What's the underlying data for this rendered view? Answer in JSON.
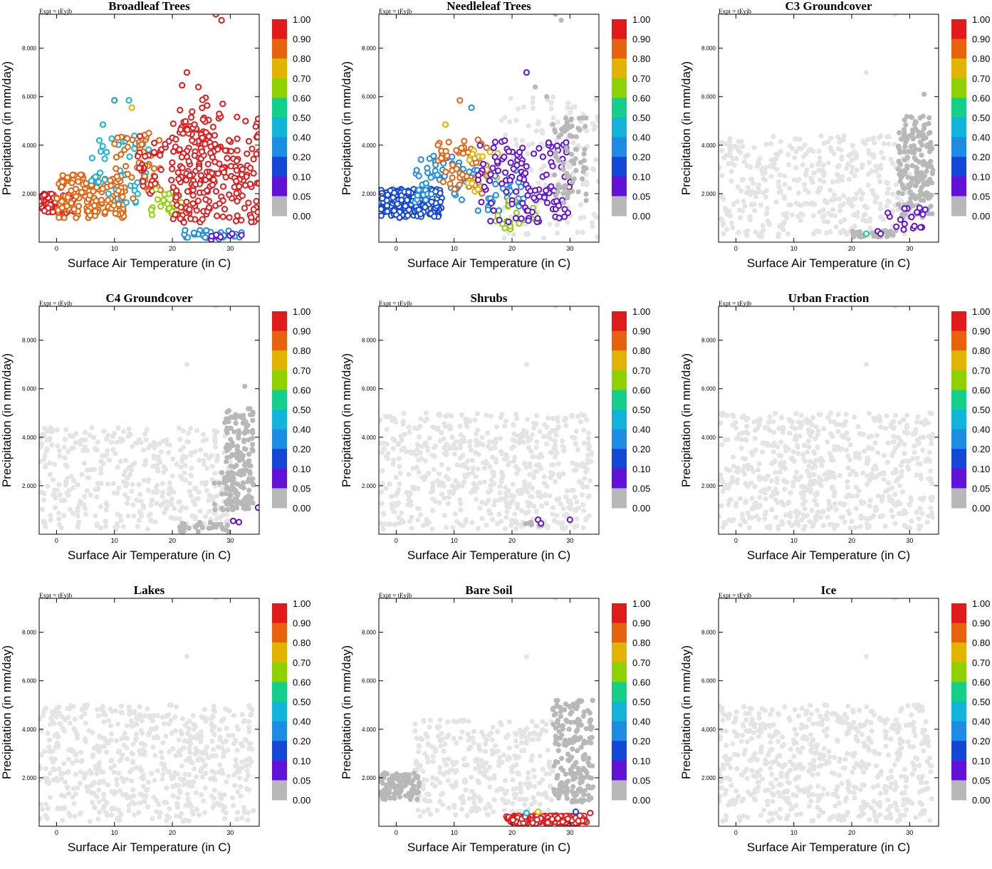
{
  "figure": {
    "expt_label": "Expt = tEyjb",
    "xlabel": "Surface Air Temperature (in C)",
    "ylabel": "Precipitation (in mm/day)",
    "x_ticks": [
      0,
      10,
      20,
      30
    ],
    "x_tick_labels": [
      "0",
      "10",
      "20",
      "30"
    ],
    "y_ticks": [
      2,
      4,
      6,
      8
    ],
    "y_tick_labels": [
      "2.000",
      "4.000",
      "6.000",
      "8.000"
    ],
    "colorbar_labels": [
      "1.00",
      "0.90",
      "0.80",
      "0.70",
      "0.60",
      "0.50",
      "0.40",
      "0.20",
      "0.10",
      "0.05",
      "0.00"
    ]
  },
  "colorbar_colors": [
    "#e31a1c",
    "#e8610c",
    "#e2b400",
    "#8ed100",
    "#14cf8a",
    "#12b4dc",
    "#1c8ce4",
    "#1446d8",
    "#6212d8",
    "#b8b8b8"
  ],
  "background_point_color": "#e4e4e4",
  "chart_data": [
    {
      "type": "scatter",
      "panel": "Broadleaf Trees",
      "title": "Broadleaf Trees",
      "xlabel": "Surface Air Temperature (in C)",
      "ylabel": "Precipitation (in mm/day)",
      "xlim": [
        -3,
        35
      ],
      "ylim": [
        0,
        9.4
      ],
      "clusters": [
        {
          "level": "0.90",
          "x": [
            -3,
            3
          ],
          "y": [
            1.2,
            2.0
          ],
          "n": 90
        },
        {
          "level": "0.80",
          "x": [
            0,
            12
          ],
          "y": [
            1.0,
            2.8
          ],
          "n": 160
        },
        {
          "level": "0.40",
          "x": [
            6,
            16
          ],
          "y": [
            1.5,
            4.4
          ],
          "n": 45
        },
        {
          "level": "0.80",
          "x": [
            10,
            18
          ],
          "y": [
            1.8,
            4.5
          ],
          "n": 50
        },
        {
          "level": "0.90",
          "x": [
            14,
            20
          ],
          "y": [
            2.0,
            4.4
          ],
          "n": 35
        },
        {
          "level": "0.60",
          "x": [
            16,
            22
          ],
          "y": [
            1.0,
            2.2
          ],
          "n": 22
        },
        {
          "level": "0.90",
          "x": [
            20,
            35
          ],
          "y": [
            0.8,
            5.2
          ],
          "n": 230
        },
        {
          "level": "0.90",
          "x": [
            21,
            29
          ],
          "y": [
            2.5,
            6.8
          ],
          "n": 30
        },
        {
          "level": "0.20",
          "x": [
            22,
            32
          ],
          "y": [
            0.1,
            0.5
          ],
          "n": 30
        },
        {
          "level": "0.05",
          "x": [
            26,
            32
          ],
          "y": [
            0.1,
            0.4
          ],
          "n": 8
        }
      ],
      "points": [
        {
          "x": 27.5,
          "y": 9.4,
          "level": "0.90"
        },
        {
          "x": 28.5,
          "y": 9.15,
          "level": "0.90"
        },
        {
          "x": 22.5,
          "y": 7.0,
          "level": "0.90"
        },
        {
          "x": 24.5,
          "y": 6.4,
          "level": "0.90"
        },
        {
          "x": 12.5,
          "y": 5.85,
          "level": "0.40"
        },
        {
          "x": 10,
          "y": 5.85,
          "level": "0.20"
        },
        {
          "x": 8,
          "y": 4.85,
          "level": "0.40"
        },
        {
          "x": 13,
          "y": 5.55,
          "level": "0.70"
        }
      ]
    },
    {
      "type": "scatter",
      "panel": "Needleleaf Trees",
      "title": "Needleleaf Trees",
      "xlabel": "Surface Air Temperature (in C)",
      "ylabel": "Precipitation (in mm/day)",
      "xlim": [
        -3,
        35
      ],
      "ylim": [
        0,
        9.4
      ],
      "clusters": [
        {
          "level": "bg",
          "x": [
            18,
            35
          ],
          "y": [
            0.1,
            6.0
          ],
          "n": 150
        },
        {
          "level": "0.10",
          "x": [
            -3,
            8
          ],
          "y": [
            1.0,
            2.2
          ],
          "n": 200
        },
        {
          "level": "0.20",
          "x": [
            3,
            14
          ],
          "y": [
            1.6,
            3.6
          ],
          "n": 60
        },
        {
          "level": "0.80",
          "x": [
            7,
            16
          ],
          "y": [
            2.0,
            4.3
          ],
          "n": 55
        },
        {
          "level": "0.70",
          "x": [
            12,
            18
          ],
          "y": [
            2.0,
            3.8
          ],
          "n": 18
        },
        {
          "level": "0.20",
          "x": [
            14,
            22
          ],
          "y": [
            1.2,
            3.0
          ],
          "n": 30
        },
        {
          "level": "0.60",
          "x": [
            17,
            24
          ],
          "y": [
            0.5,
            1.8
          ],
          "n": 20
        },
        {
          "level": "0.05",
          "x": [
            14,
            31
          ],
          "y": [
            0.8,
            4.2
          ],
          "n": 120
        },
        {
          "level": "0.00",
          "x": [
            27,
            33
          ],
          "y": [
            1.5,
            5.2
          ],
          "n": 70
        }
      ],
      "points": [
        {
          "x": 27.5,
          "y": 9.4,
          "level": "0.00"
        },
        {
          "x": 28.5,
          "y": 9.15,
          "level": "0.00"
        },
        {
          "x": 22.5,
          "y": 7.0,
          "level": "0.05"
        },
        {
          "x": 11,
          "y": 5.85,
          "level": "0.80"
        },
        {
          "x": 8.5,
          "y": 4.85,
          "level": "0.70"
        },
        {
          "x": 13,
          "y": 5.55,
          "level": "0.20"
        },
        {
          "x": 24,
          "y": 6.4,
          "level": "0.00"
        },
        {
          "x": 26,
          "y": 6.0,
          "level": "0.00"
        }
      ]
    },
    {
      "type": "scatter",
      "panel": "C3 Groundcover",
      "title": "C3 Groundcover",
      "xlabel": "Surface Air Temperature (in C)",
      "ylabel": "Precipitation (in mm/day)",
      "xlim": [
        -3,
        35
      ],
      "ylim": [
        0,
        9.4
      ],
      "clusters": [
        {
          "level": "bg",
          "x": [
            -3,
            30
          ],
          "y": [
            0.2,
            4.4
          ],
          "n": 420
        },
        {
          "level": "0.00",
          "x": [
            28,
            34
          ],
          "y": [
            1.0,
            5.2
          ],
          "n": 190
        },
        {
          "level": "0.00",
          "x": [
            20,
            28
          ],
          "y": [
            0.2,
            0.5
          ],
          "n": 35
        },
        {
          "level": "0.05",
          "x": [
            26,
            33
          ],
          "y": [
            0.5,
            1.5
          ],
          "n": 18
        }
      ],
      "points": [
        {
          "x": 22.5,
          "y": 0.35,
          "level": "0.50"
        },
        {
          "x": 24.5,
          "y": 0.45,
          "level": "0.05"
        },
        {
          "x": 25,
          "y": 0.35,
          "level": "0.05"
        },
        {
          "x": 27.5,
          "y": 9.4,
          "level": "bg"
        },
        {
          "x": 22.5,
          "y": 7.0,
          "level": "bg"
        },
        {
          "x": 32.5,
          "y": 6.1,
          "level": "0.00"
        }
      ]
    },
    {
      "type": "scatter",
      "panel": "C4 Groundcover",
      "title": "C4 Groundcover",
      "xlabel": "Surface Air Temperature (in C)",
      "ylabel": "Precipitation (in mm/day)",
      "xlim": [
        -3,
        35
      ],
      "ylim": [
        0,
        9.4
      ],
      "clusters": [
        {
          "level": "bg",
          "x": [
            -3,
            30
          ],
          "y": [
            0.2,
            4.4
          ],
          "n": 420
        },
        {
          "level": "0.00",
          "x": [
            29,
            34
          ],
          "y": [
            1.0,
            5.2
          ],
          "n": 170
        },
        {
          "level": "0.00",
          "x": [
            20,
            30
          ],
          "y": [
            0.1,
            0.5
          ],
          "n": 30
        },
        {
          "level": "0.00",
          "x": [
            27,
            31
          ],
          "y": [
            1.0,
            2.6
          ],
          "n": 25
        }
      ],
      "points": [
        {
          "x": 30.5,
          "y": 0.55,
          "level": "0.05"
        },
        {
          "x": 31.5,
          "y": 0.5,
          "level": "0.05"
        },
        {
          "x": 34.8,
          "y": 1.1,
          "level": "0.05"
        },
        {
          "x": 27.5,
          "y": 9.4,
          "level": "bg"
        },
        {
          "x": 22.5,
          "y": 7.0,
          "level": "bg"
        },
        {
          "x": 32.5,
          "y": 6.1,
          "level": "0.00"
        }
      ]
    },
    {
      "type": "scatter",
      "panel": "Shrubs",
      "title": "Shrubs",
      "xlabel": "Surface Air Temperature (in C)",
      "ylabel": "Precipitation (in mm/day)",
      "xlim": [
        -3,
        35
      ],
      "ylim": [
        0,
        9.4
      ],
      "clusters": [
        {
          "level": "bg",
          "x": [
            -3,
            34
          ],
          "y": [
            0.2,
            5.0
          ],
          "n": 600
        },
        {
          "level": "0.00",
          "x": [
            22,
            29
          ],
          "y": [
            0.3,
            0.5
          ],
          "n": 6
        }
      ],
      "points": [
        {
          "x": 24.5,
          "y": 0.6,
          "level": "0.05"
        },
        {
          "x": 25,
          "y": 0.45,
          "level": "0.05"
        },
        {
          "x": 30,
          "y": 0.6,
          "level": "0.05"
        },
        {
          "x": 27.5,
          "y": 9.4,
          "level": "bg"
        },
        {
          "x": 22.5,
          "y": 7.0,
          "level": "bg"
        }
      ]
    },
    {
      "type": "scatter",
      "panel": "Urban Fraction",
      "title": "Urban Fraction",
      "xlabel": "Surface Air Temperature (in C)",
      "ylabel": "Precipitation (in mm/day)",
      "xlim": [
        -3,
        35
      ],
      "ylim": [
        0,
        9.4
      ],
      "clusters": [
        {
          "level": "bg",
          "x": [
            -3,
            34
          ],
          "y": [
            0.2,
            5.0
          ],
          "n": 620
        }
      ],
      "points": [
        {
          "x": 27.5,
          "y": 9.4,
          "level": "bg"
        },
        {
          "x": 22.5,
          "y": 7.0,
          "level": "bg"
        }
      ]
    },
    {
      "type": "scatter",
      "panel": "Lakes",
      "title": "Lakes",
      "xlabel": "Surface Air Temperature (in C)",
      "ylabel": "Precipitation (in mm/day)",
      "xlim": [
        -3,
        35
      ],
      "ylim": [
        0,
        9.4
      ],
      "clusters": [
        {
          "level": "bg",
          "x": [
            -3,
            34
          ],
          "y": [
            0.2,
            5.0
          ],
          "n": 620
        }
      ],
      "points": [
        {
          "x": 27.5,
          "y": 9.4,
          "level": "bg"
        },
        {
          "x": 22.5,
          "y": 7.0,
          "level": "bg"
        }
      ]
    },
    {
      "type": "scatter",
      "panel": "Bare Soil",
      "title": "Bare Soil",
      "xlabel": "Surface Air Temperature (in C)",
      "ylabel": "Precipitation (in mm/day)",
      "xlim": [
        -3,
        35
      ],
      "ylim": [
        0,
        9.4
      ],
      "clusters": [
        {
          "level": "bg",
          "x": [
            3,
            27
          ],
          "y": [
            0.4,
            4.4
          ],
          "n": 330
        },
        {
          "level": "0.00",
          "x": [
            -3,
            4
          ],
          "y": [
            1.1,
            2.2
          ],
          "n": 110
        },
        {
          "level": "0.00",
          "x": [
            27,
            34
          ],
          "y": [
            1.0,
            5.2
          ],
          "n": 190
        },
        {
          "level": "0.90",
          "x": [
            19,
            33
          ],
          "y": [
            0.1,
            0.45
          ],
          "n": 170
        }
      ],
      "points": [
        {
          "x": 22.5,
          "y": 0.55,
          "level": "0.40"
        },
        {
          "x": 24.5,
          "y": 0.6,
          "level": "0.70"
        },
        {
          "x": 31,
          "y": 0.6,
          "level": "0.10"
        },
        {
          "x": 33.5,
          "y": 0.55,
          "level": "0.90"
        },
        {
          "x": 27.5,
          "y": 9.4,
          "level": "bg"
        },
        {
          "x": 22.5,
          "y": 7.0,
          "level": "bg"
        }
      ]
    },
    {
      "type": "scatter",
      "panel": "Ice",
      "title": "Ice",
      "xlabel": "Surface Air Temperature (in C)",
      "ylabel": "Precipitation (in mm/day)",
      "xlim": [
        -3,
        35
      ],
      "ylim": [
        0,
        9.4
      ],
      "clusters": [
        {
          "level": "bg",
          "x": [
            -3,
            34
          ],
          "y": [
            0.2,
            5.0
          ],
          "n": 620
        }
      ],
      "points": [
        {
          "x": 27.5,
          "y": 9.4,
          "level": "bg"
        },
        {
          "x": 22.5,
          "y": 7.0,
          "level": "bg"
        }
      ]
    }
  ]
}
